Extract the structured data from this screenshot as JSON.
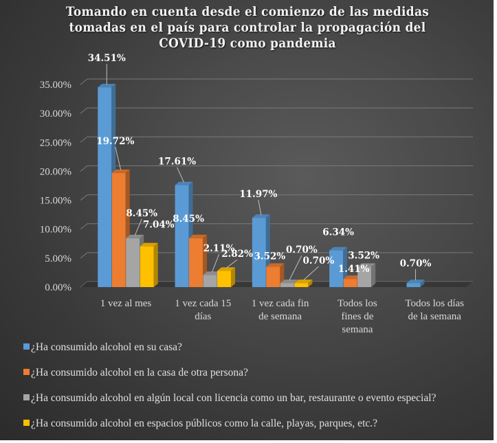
{
  "chart_data": {
    "type": "bar",
    "title": "Tomando en cuenta desde el comienzo de las medidas tomadas en el país para controlar la propagación del COVID-19 como pandemia",
    "title_lines": [
      "Tomando en cuenta desde el comienzo de las medidas",
      "tomadas en el país para controlar la propagación del",
      "COVID-19 como pandemia"
    ],
    "xlabel": "",
    "ylabel": "",
    "ylim": [
      0,
      35
    ],
    "yticks": [
      "0.00%",
      "5.00%",
      "10.00%",
      "15.00%",
      "20.00%",
      "25.00%",
      "30.00%",
      "35.00%"
    ],
    "ytick_values": [
      0,
      5,
      10,
      15,
      20,
      25,
      30,
      35
    ],
    "grid": true,
    "legend_position": "bottom",
    "style": "3d-clustered-column",
    "categories": [
      [
        "1 vez al mes"
      ],
      [
        "1 vez cada 15",
        "días"
      ],
      [
        "1 vez cada fin",
        "de semana"
      ],
      [
        "Todos los",
        "fines de",
        "semana"
      ],
      [
        "Todos los días",
        "de la semana"
      ]
    ],
    "series": [
      {
        "name": "¿Ha consumido alcohol en su casa?",
        "color": "#5b9bd5",
        "values": [
          34.51,
          17.61,
          11.97,
          6.34,
          0.7
        ],
        "labels": [
          "34.51%",
          "17.61%",
          "11.97%",
          "6.34%",
          "0.70%"
        ]
      },
      {
        "name": "¿Ha consumido alcohol en la casa de otra persona?",
        "color": "#ed7d31",
        "values": [
          19.72,
          8.45,
          3.52,
          1.41,
          null
        ],
        "labels": [
          "19.72%",
          "8.45%",
          "3.52%",
          "1.41%",
          null
        ]
      },
      {
        "name": "¿Ha consumido alcohol en algún local con licencia como un bar, restaurante o evento especial?",
        "color": "#a5a5a5",
        "values": [
          8.45,
          2.11,
          0.7,
          3.52,
          null
        ],
        "labels": [
          "8.45%",
          "2.11%",
          "0.70%",
          "3.52%",
          null
        ]
      },
      {
        "name": "¿Ha consumido alcohol en espacios públicos como la calle, playas, parques, etc.?",
        "color": "#ffc000",
        "values": [
          7.04,
          2.82,
          0.7,
          null,
          null
        ],
        "labels": [
          "7.04%",
          "2.82%",
          "0.70%",
          null,
          null
        ]
      }
    ]
  }
}
